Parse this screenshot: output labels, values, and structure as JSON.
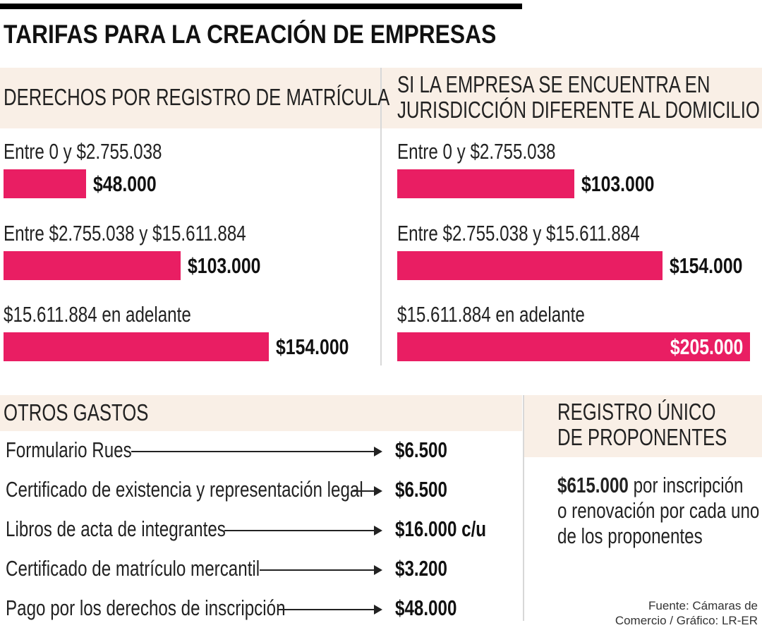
{
  "title": "TARIFAS PARA LA CREACIÓN DE EMPRESAS",
  "colors": {
    "bar": "#e91e63",
    "header_band": "#f9efe6",
    "text": "#111111"
  },
  "chart_data": [
    {
      "type": "bar",
      "orientation": "horizontal",
      "title": "DERECHOS POR REGISTRO DE MATRÍCULA",
      "categories": [
        "Entre 0 y $2.755.038",
        "Entre $2.755.038 y $15.611.884",
        "$15.611.884 en adelante"
      ],
      "values": [
        48000,
        103000,
        154000
      ],
      "value_labels": [
        "$48.000",
        "$103.000",
        "$154.000"
      ]
    },
    {
      "type": "bar",
      "orientation": "horizontal",
      "title_lines": [
        "SI LA EMPRESA SE ENCUENTRA EN",
        "JURISDICCIÓN DIFERENTE AL DOMICILIO"
      ],
      "categories": [
        "Entre 0 y $2.755.038",
        "Entre $2.755.038 y $15.611.884",
        "$15.611.884 en adelante"
      ],
      "values": [
        103000,
        154000,
        205000
      ],
      "value_labels": [
        "$103.000",
        "$154.000",
        "$205.000"
      ]
    }
  ],
  "otros_gastos": {
    "title": "OTROS GASTOS",
    "items": [
      {
        "label": "Formulario Rues",
        "value": "$6.500"
      },
      {
        "label": "Certificado de existencia y representación legal",
        "value": "$6.500"
      },
      {
        "label": "Libros de acta de integrantes",
        "value": "$16.000 c/u"
      },
      {
        "label": "Certificado de matrículo mercantil",
        "value": "$3.200"
      },
      {
        "label": "Pago por los derechos de inscripción",
        "value": "$48.000"
      }
    ]
  },
  "rup": {
    "title_lines": [
      "REGISTRO ÚNICO",
      "DE PROPONENTES"
    ],
    "amount": "$615.000",
    "line1_rest": " por inscripción",
    "line2": "o renovación por cada uno",
    "line3": "de los proponentes"
  },
  "source": {
    "line1": "Fuente: Cámaras de",
    "line2": "Comercio / Gráfico: LR-ER"
  }
}
